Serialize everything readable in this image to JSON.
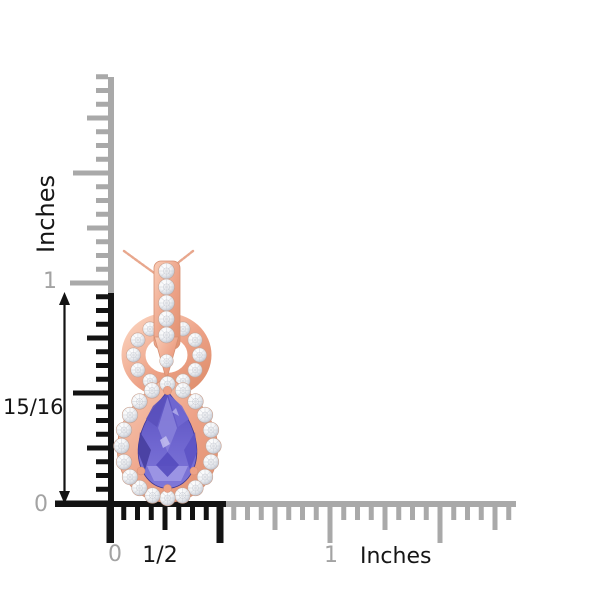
{
  "subject": "tanzanite-diamond-halo-rose-gold-pendant",
  "vertical_ruler": {
    "unit_label": "Inches",
    "labels": {
      "one": "1",
      "zero": "0"
    },
    "measurement": {
      "value": "15/16",
      "unit": "inches"
    }
  },
  "horizontal_ruler": {
    "unit_label": "Inches",
    "labels": {
      "zero": "0",
      "half": "1/2",
      "one": "1"
    }
  },
  "measurements": {
    "pendant_height_inches": "15/16",
    "pendant_width_inches": "1/2"
  },
  "ruler_style": {
    "gray": "#a9a9a9",
    "black": "#131313",
    "label_gray": "#a3a3a3",
    "label_black": "#161616"
  },
  "pendant_colors": {
    "rose_gold": "#eda287",
    "rose_gold_deep": "#d68f72",
    "chain": "#e8a78d",
    "tanzanite": "#6a61cb",
    "tanzanite_dark": "#483fa0",
    "tanzanite_light": "#9e98e5",
    "diamond": "#f3f4f6",
    "diamond_shade": "#b6bac6"
  },
  "background": "#ffffff"
}
